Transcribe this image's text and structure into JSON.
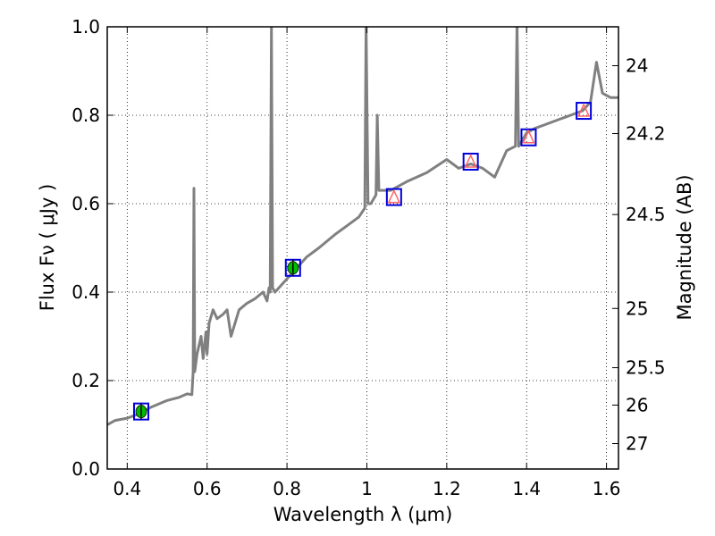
{
  "chart_data": {
    "type": "line",
    "title": "",
    "xlabel": "Wavelength  λ (μm)",
    "ylabel": "Flux  Fν ( μJy )",
    "y2label": "Magnitude (AB)",
    "xlim": [
      0.35,
      1.63
    ],
    "ylim": [
      0.0,
      1.0
    ],
    "grid": true,
    "xticks": [
      0.4,
      0.6,
      0.8,
      1.0,
      1.2,
      1.4,
      1.6
    ],
    "xtick_labels": [
      "0.4",
      "0.6",
      "0.8",
      "1",
      "1.2",
      "1.4",
      "1.6"
    ],
    "yticks": [
      0.0,
      0.2,
      0.4,
      0.6,
      0.8,
      1.0
    ],
    "ytick_labels": [
      "0.0",
      "0.2",
      "0.4",
      "0.6",
      "0.8",
      "1.0"
    ],
    "magnitude_ticks": [
      {
        "label": "24",
        "value": 24
      },
      {
        "label": "24.2",
        "value": 24.2
      },
      {
        "label": "24.5",
        "value": 24.5
      },
      {
        "label": "25",
        "value": 25
      },
      {
        "label": "25.5",
        "value": 25.5
      },
      {
        "label": "26",
        "value": 26
      },
      {
        "label": "27",
        "value": 27
      }
    ],
    "spectrum_color": "#808080",
    "spectrum": [
      [
        0.35,
        0.1
      ],
      [
        0.37,
        0.11
      ],
      [
        0.4,
        0.115
      ],
      [
        0.43,
        0.125
      ],
      [
        0.46,
        0.14
      ],
      [
        0.5,
        0.155
      ],
      [
        0.53,
        0.162
      ],
      [
        0.55,
        0.17
      ],
      [
        0.562,
        0.168
      ],
      [
        0.565,
        0.22
      ],
      [
        0.567,
        0.635
      ],
      [
        0.569,
        0.22
      ],
      [
        0.575,
        0.26
      ],
      [
        0.585,
        0.3
      ],
      [
        0.59,
        0.25
      ],
      [
        0.597,
        0.31
      ],
      [
        0.6,
        0.26
      ],
      [
        0.605,
        0.33
      ],
      [
        0.615,
        0.36
      ],
      [
        0.625,
        0.34
      ],
      [
        0.64,
        0.35
      ],
      [
        0.65,
        0.36
      ],
      [
        0.66,
        0.3
      ],
      [
        0.68,
        0.36
      ],
      [
        0.7,
        0.375
      ],
      [
        0.72,
        0.385
      ],
      [
        0.74,
        0.4
      ],
      [
        0.75,
        0.38
      ],
      [
        0.755,
        0.41
      ],
      [
        0.758,
        0.4
      ],
      [
        0.761,
        1.01
      ],
      [
        0.764,
        0.41
      ],
      [
        0.77,
        0.4
      ],
      [
        0.79,
        0.42
      ],
      [
        0.82,
        0.45
      ],
      [
        0.85,
        0.48
      ],
      [
        0.88,
        0.5
      ],
      [
        0.92,
        0.53
      ],
      [
        0.95,
        0.55
      ],
      [
        0.98,
        0.57
      ],
      [
        0.995,
        0.59
      ],
      [
        0.998,
        1.01
      ],
      [
        1.003,
        0.6
      ],
      [
        1.01,
        0.6
      ],
      [
        1.023,
        0.62
      ],
      [
        1.026,
        0.8
      ],
      [
        1.03,
        0.63
      ],
      [
        1.06,
        0.63
      ],
      [
        1.1,
        0.65
      ],
      [
        1.15,
        0.67
      ],
      [
        1.2,
        0.7
      ],
      [
        1.23,
        0.68
      ],
      [
        1.26,
        0.69
      ],
      [
        1.29,
        0.68
      ],
      [
        1.32,
        0.66
      ],
      [
        1.35,
        0.72
      ],
      [
        1.372,
        0.73
      ],
      [
        1.376,
        1.01
      ],
      [
        1.38,
        0.73
      ],
      [
        1.4,
        0.76
      ],
      [
        1.42,
        0.77
      ],
      [
        1.45,
        0.78
      ],
      [
        1.48,
        0.79
      ],
      [
        1.51,
        0.8
      ],
      [
        1.54,
        0.81
      ],
      [
        1.56,
        0.83
      ],
      [
        1.575,
        0.92
      ],
      [
        1.59,
        0.85
      ],
      [
        1.61,
        0.84
      ],
      [
        1.63,
        0.84
      ]
    ],
    "phot_points": [
      {
        "x": 0.435,
        "y": 0.13,
        "marker": "circle",
        "color": "#00bb00"
      },
      {
        "x": 0.815,
        "y": 0.455,
        "marker": "circle",
        "color": "#00bb00"
      },
      {
        "x": 1.068,
        "y": 0.615,
        "marker": "triangle",
        "color": "#ff6666"
      },
      {
        "x": 1.26,
        "y": 0.695,
        "marker": "triangle",
        "color": "#ff6666"
      },
      {
        "x": 1.405,
        "y": 0.75,
        "marker": "triangle",
        "color": "#ff6666"
      },
      {
        "x": 1.543,
        "y": 0.81,
        "marker": "triangle",
        "color": "#ff6666"
      }
    ],
    "model_box_color": "#0000dd"
  }
}
